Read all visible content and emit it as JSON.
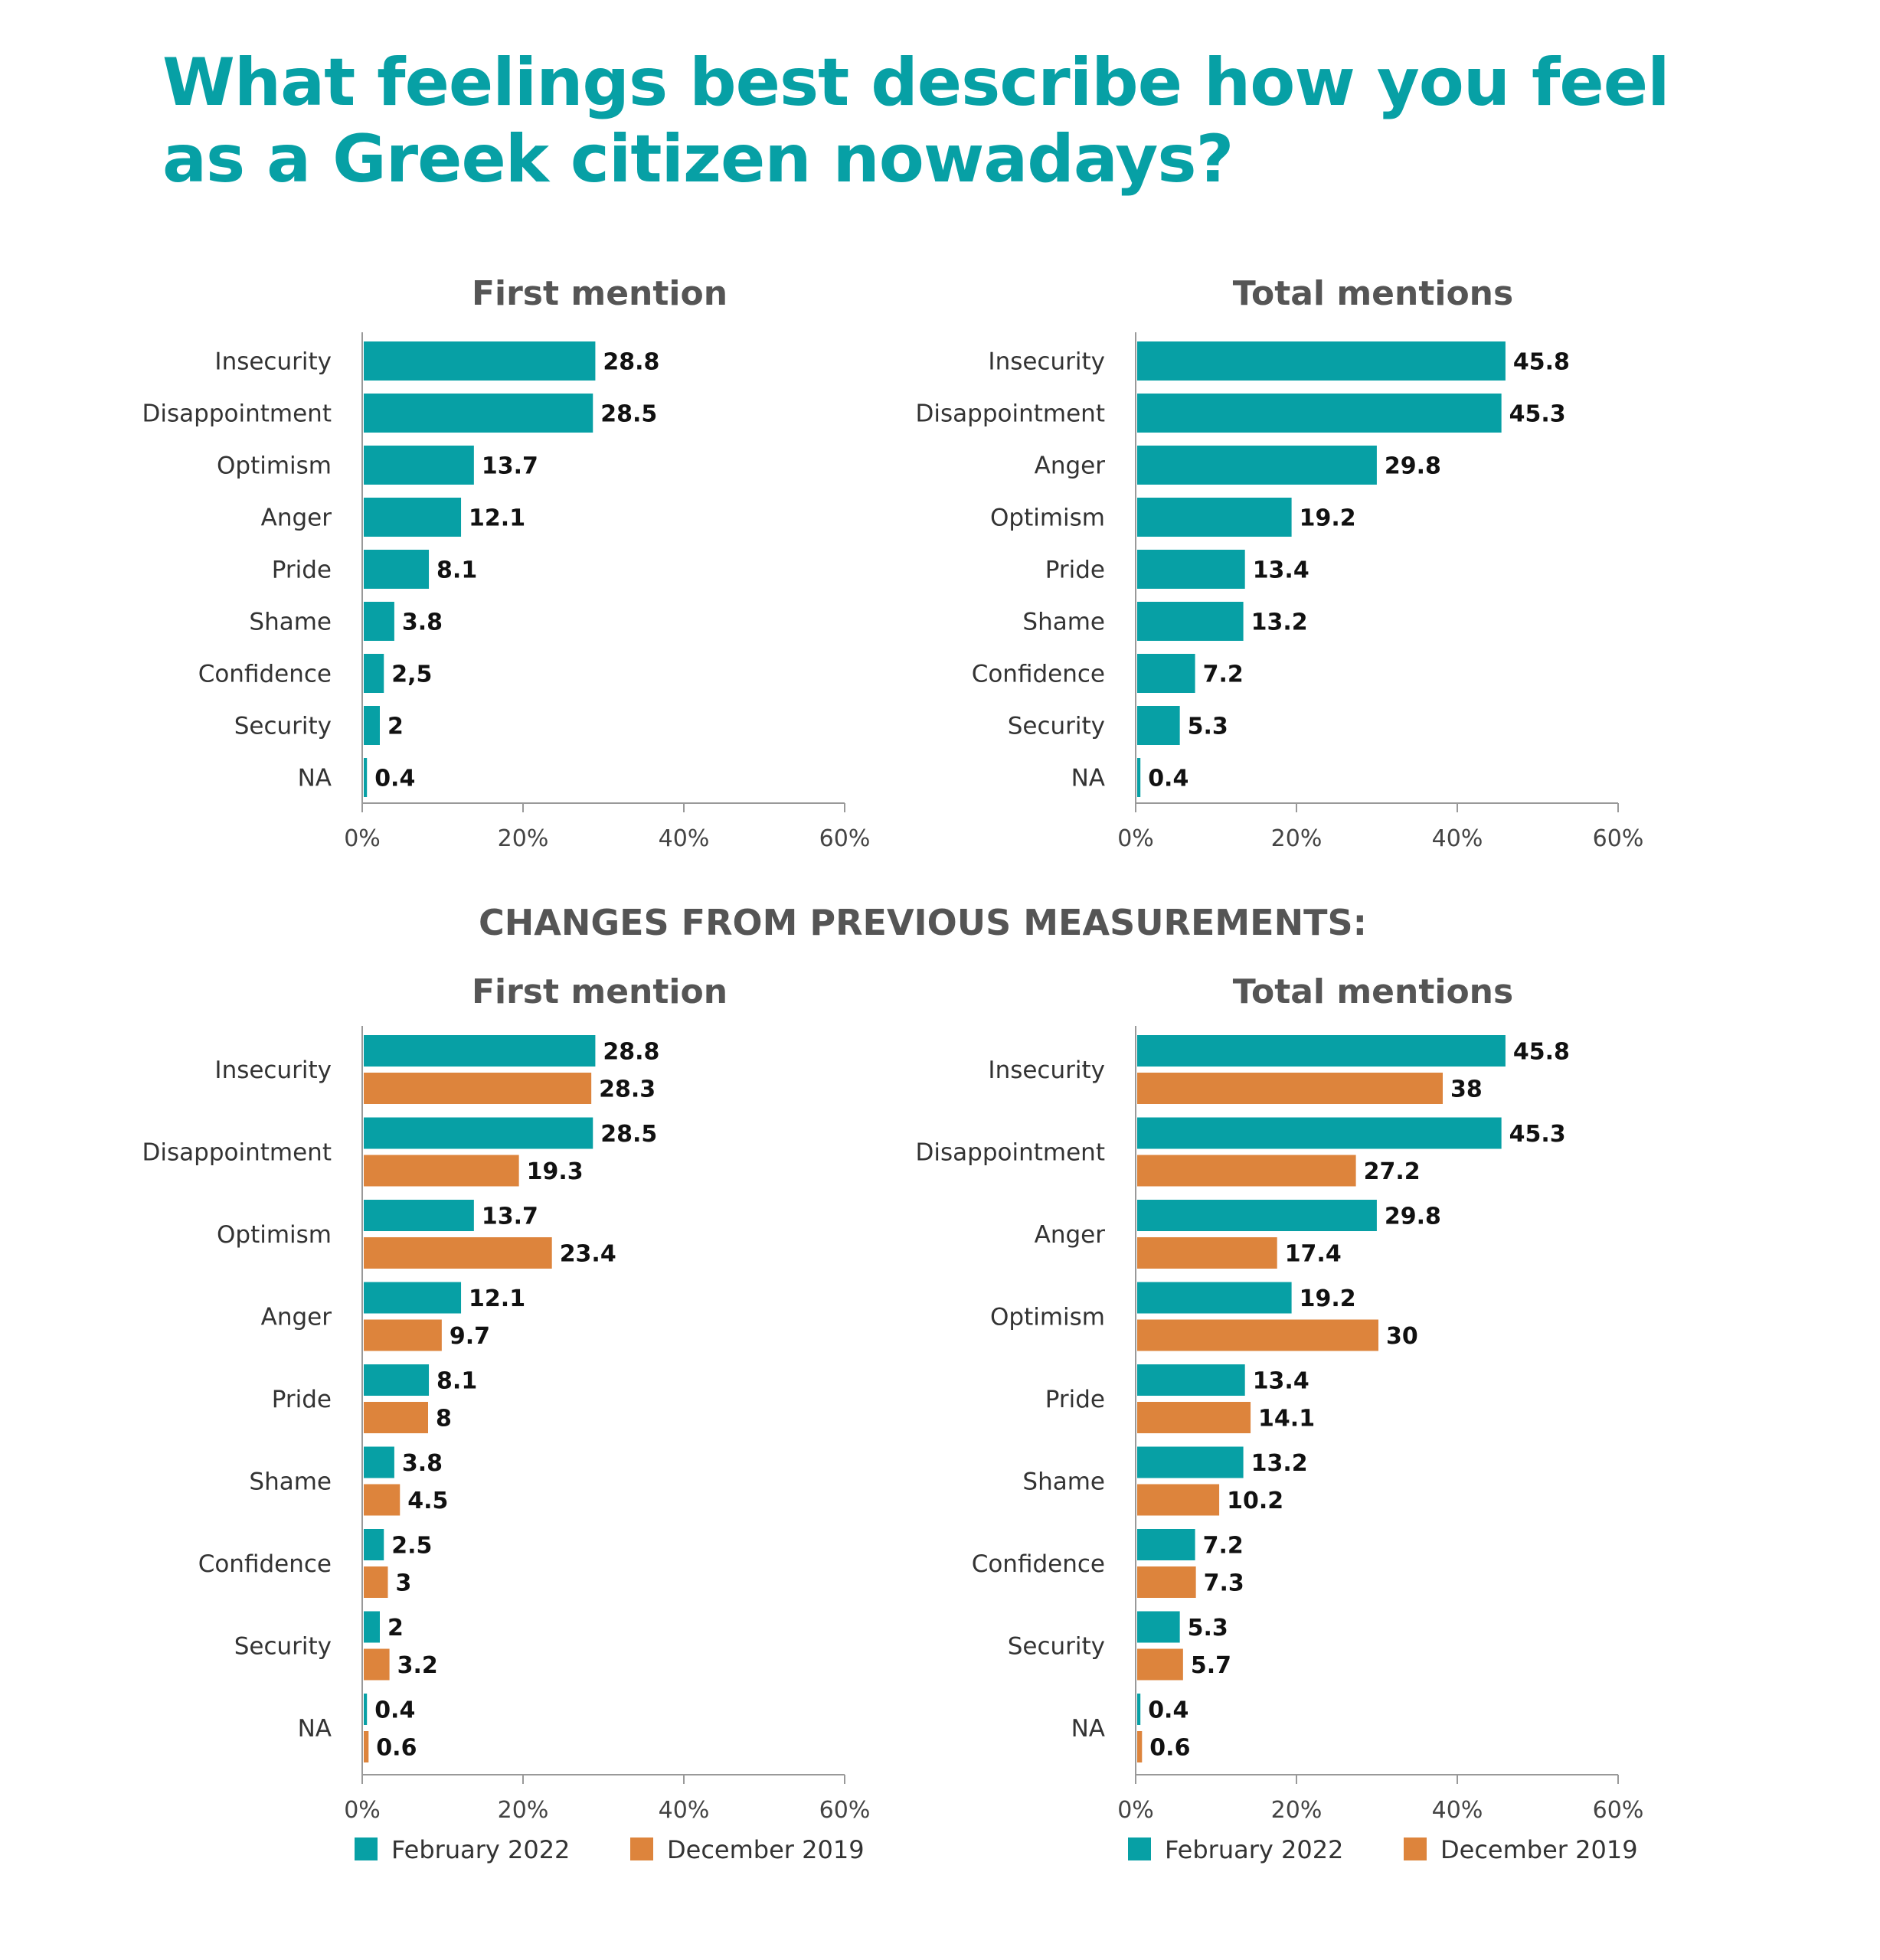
{
  "title": "What feelings best describe how you feel as a Greek citizen nowadays?",
  "section_title": "CHANGES FROM PREVIOUS MEASUREMENTS:",
  "colors": {
    "primary": "#07a0a5",
    "secondary": "#dd843c"
  },
  "chart_data": [
    {
      "type": "bar",
      "orientation": "horizontal",
      "title": "First mention",
      "categories": [
        "Insecurity",
        "Disappointment",
        "Optimism",
        "Anger",
        "Pride",
        "Shame",
        "Confidence",
        "Security",
        "NA"
      ],
      "series": [
        {
          "values": [
            28.8,
            28.5,
            13.7,
            12.1,
            8.1,
            3.8,
            2.5,
            2,
            0.4
          ],
          "labels": [
            "28.8",
            "28.5",
            "13.7",
            "12.1",
            "8.1",
            "3.8",
            "2,5",
            "2",
            "0.4"
          ]
        }
      ],
      "xlim": [
        0,
        60
      ],
      "xticks": [
        "0%",
        "20%",
        "40%",
        "60%"
      ]
    },
    {
      "type": "bar",
      "orientation": "horizontal",
      "title": "Total mentions",
      "categories": [
        "Insecurity",
        "Disappointment",
        "Anger",
        "Optimism",
        "Pride",
        "Shame",
        "Confidence",
        "Security",
        "NA"
      ],
      "series": [
        {
          "values": [
            45.8,
            45.3,
            29.8,
            19.2,
            13.4,
            13.2,
            7.2,
            5.3,
            0.4
          ],
          "labels": [
            "45.8",
            "45.3",
            "29.8",
            "19.2",
            "13.4",
            "13.2",
            "7.2",
            "5.3",
            "0.4"
          ]
        }
      ],
      "xlim": [
        0,
        60
      ],
      "xticks": [
        "0%",
        "20%",
        "40%",
        "60%"
      ]
    },
    {
      "type": "bar",
      "orientation": "horizontal",
      "title": "First mention",
      "categories": [
        "Insecurity",
        "Disappointment",
        "Optimism",
        "Anger",
        "Pride",
        "Shame",
        "Confidence",
        "Security",
        "NA"
      ],
      "series": [
        {
          "name": "February 2022",
          "values": [
            28.8,
            28.5,
            13.7,
            12.1,
            8.1,
            3.8,
            2.5,
            2,
            0.4
          ],
          "labels": [
            "28.8",
            "28.5",
            "13.7",
            "12.1",
            "8.1",
            "3.8",
            "2.5",
            "2",
            "0.4"
          ]
        },
        {
          "name": "December 2019",
          "values": [
            28.3,
            19.3,
            23.4,
            9.7,
            8,
            4.5,
            3,
            3.2,
            0.6
          ],
          "labels": [
            "28.3",
            "19.3",
            "23.4",
            "9.7",
            "8",
            "4.5",
            "3",
            "3.2",
            "0.6"
          ]
        }
      ],
      "xlim": [
        0,
        60
      ],
      "xticks": [
        "0%",
        "20%",
        "40%",
        "60%"
      ],
      "legend": "bottom"
    },
    {
      "type": "bar",
      "orientation": "horizontal",
      "title": "Total mentions",
      "categories": [
        "Insecurity",
        "Disappointment",
        "Anger",
        "Optimism",
        "Pride",
        "Shame",
        "Confidence",
        "Security",
        "NA"
      ],
      "series": [
        {
          "name": "February 2022",
          "values": [
            45.8,
            45.3,
            29.8,
            19.2,
            13.4,
            13.2,
            7.2,
            5.3,
            0.4
          ],
          "labels": [
            "45.8",
            "45.3",
            "29.8",
            "19.2",
            "13.4",
            "13.2",
            "7.2",
            "5.3",
            "0.4"
          ]
        },
        {
          "name": "December 2019",
          "values": [
            38,
            27.2,
            17.4,
            30,
            14.1,
            10.2,
            7.3,
            5.7,
            0.6
          ],
          "labels": [
            "38",
            "27.2",
            "17.4",
            "30",
            "14.1",
            "10.2",
            "7.3",
            "5.7",
            "0.6"
          ]
        }
      ],
      "xlim": [
        0,
        60
      ],
      "xticks": [
        "0%",
        "20%",
        "40%",
        "60%"
      ],
      "legend": "bottom"
    }
  ]
}
